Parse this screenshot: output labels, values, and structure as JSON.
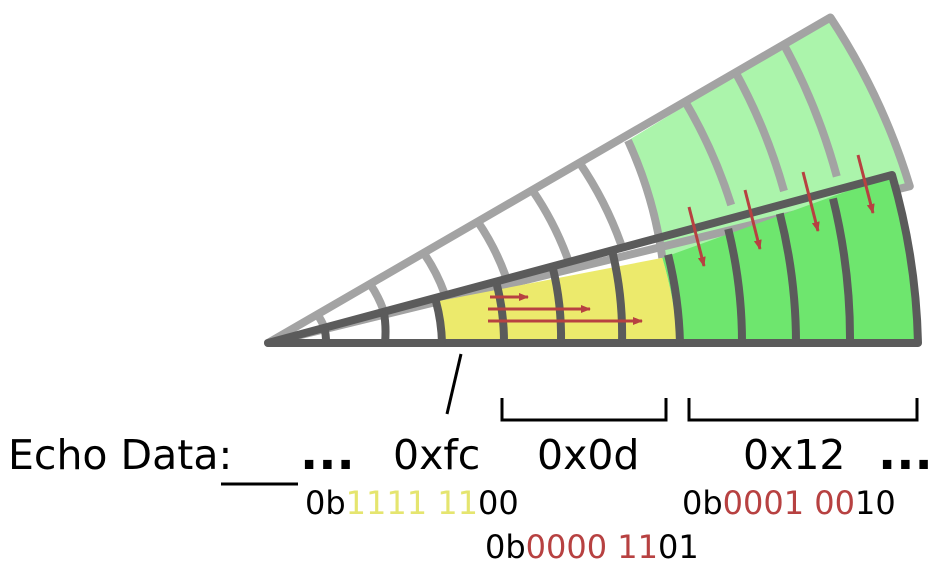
{
  "labels": {
    "echo_data": "Echo Data:",
    "ellipsis": "...",
    "hex_fc": "0xfc",
    "hex_0d": "0x0d",
    "hex_12": "0x12"
  },
  "binary_fc": {
    "prefix": "0b",
    "highlight": "1111 11",
    "rest": "00"
  },
  "binary_0d": {
    "prefix": "0b",
    "highlight": "0000 11",
    "rest": "01"
  },
  "binary_12": {
    "prefix": "0b",
    "highlight": "0001 00",
    "rest": "10"
  },
  "colors": {
    "yellow_fill": "#ecea6c",
    "yellow_text": "#e5e56f",
    "green_fill": "#6ee66e",
    "light_green_fill": "#abf4ab",
    "red": "#b74141",
    "dark_gray": "#5b5b5b",
    "light_gray": "#a3a3a3"
  }
}
